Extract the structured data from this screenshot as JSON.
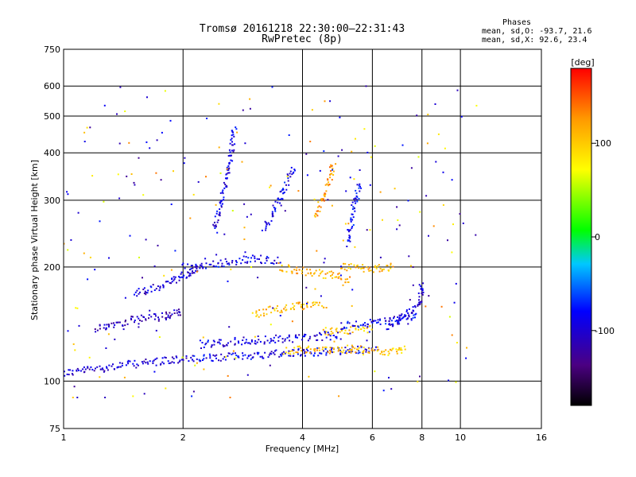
{
  "title_line1": "Tromsø 20161218 22:30:00–22:31:43",
  "title_line2": "RwPretec (8p)",
  "stats": {
    "heading": "Phases",
    "line_o": "mean, sd,O: -93.7, 21.6",
    "line_x": "mean, sd,X:  92.6, 23.4"
  },
  "colorbar": {
    "label": "[deg]",
    "ticks": [
      {
        "value": 100,
        "label": "100"
      },
      {
        "value": 0,
        "label": "0"
      },
      {
        "value": -100,
        "label": "-100"
      }
    ],
    "range": [
      -180,
      180
    ]
  },
  "chart_data": {
    "type": "scatter",
    "xlabel": "Frequency [MHz]",
    "ylabel": "Stationary phase Virtual Height [km]",
    "x_scale": "log",
    "y_scale": "log",
    "xlim": [
      1,
      16
    ],
    "ylim": [
      75,
      750
    ],
    "x_ticks": [
      {
        "value": 1,
        "label": "1"
      },
      {
        "value": 2,
        "label": "2"
      },
      {
        "value": 4,
        "label": "4"
      },
      {
        "value": 6,
        "label": "6"
      },
      {
        "value": 8,
        "label": "8"
      },
      {
        "value": 10,
        "label": "10"
      },
      {
        "value": 16,
        "label": "16"
      }
    ],
    "y_ticks": [
      {
        "value": 75,
        "label": "75"
      },
      {
        "value": 100,
        "label": "100"
      },
      {
        "value": 200,
        "label": "200"
      },
      {
        "value": 300,
        "label": "300"
      },
      {
        "value": 400,
        "label": "400"
      },
      {
        "value": 500,
        "label": "500"
      },
      {
        "value": 600,
        "label": "600"
      },
      {
        "value": 750,
        "label": "750"
      }
    ],
    "grid": true,
    "colormap": "rainbow",
    "traces": [
      {
        "f": [
          1.0,
          1.4,
          1.8,
          2.1
        ],
        "h": [
          105,
          110,
          113,
          115
        ],
        "phase": -100
      },
      {
        "f": [
          2.1,
          3.0,
          4.0,
          5.0,
          6.2
        ],
        "h": [
          114,
          117,
          119,
          120,
          121
        ],
        "phase": -90
      },
      {
        "f": [
          3.6,
          4.2,
          5.0,
          5.6
        ],
        "h": [
          120,
          121,
          121,
          122
        ],
        "phase": 110
      },
      {
        "f": [
          5.6,
          6.5,
          7.3
        ],
        "h": [
          120,
          120,
          121
        ],
        "phase": 105
      },
      {
        "f": [
          1.2,
          1.5,
          1.8,
          2.0
        ],
        "h": [
          138,
          145,
          148,
          152
        ],
        "phase": -110
      },
      {
        "f": [
          2.2,
          3.0,
          4.0,
          5.0
        ],
        "h": [
          125,
          128,
          130,
          132
        ],
        "phase": -95
      },
      {
        "f": [
          3.0,
          3.5,
          4.0,
          4.6
        ],
        "h": [
          150,
          155,
          158,
          160
        ],
        "phase": 110
      },
      {
        "f": [
          4.5,
          5.2,
          6.0
        ],
        "h": [
          135,
          136,
          138
        ],
        "phase": 100
      },
      {
        "f": [
          5.0,
          6.0,
          7.0,
          7.8
        ],
        "h": [
          140,
          142,
          145,
          150
        ],
        "phase": -85
      },
      {
        "f": [
          6.5,
          7.2,
          7.9,
          8.0
        ],
        "h": [
          140,
          148,
          160,
          180
        ],
        "phase": -100
      },
      {
        "f": [
          1.5,
          1.8,
          2.0,
          2.2
        ],
        "h": [
          170,
          180,
          190,
          200
        ],
        "phase": -100
      },
      {
        "f": [
          2.0,
          2.5,
          3.0,
          3.5
        ],
        "h": [
          200,
          205,
          210,
          208
        ],
        "phase": -90
      },
      {
        "f": [
          3.5,
          4.0,
          4.7,
          5.3
        ],
        "h": [
          200,
          195,
          190,
          185
        ],
        "phase": 115
      },
      {
        "f": [
          5.0,
          6.0,
          6.8
        ],
        "h": [
          200,
          198,
          200
        ],
        "phase": 110
      },
      {
        "f": [
          2.4,
          2.6,
          2.7
        ],
        "h": [
          250,
          350,
          470
        ],
        "phase": -95
      },
      {
        "f": [
          3.2,
          3.5,
          3.8
        ],
        "h": [
          250,
          300,
          370
        ],
        "phase": -90
      },
      {
        "f": [
          4.3,
          4.6,
          4.8
        ],
        "h": [
          270,
          320,
          380
        ],
        "phase": 125
      },
      {
        "f": [
          5.2,
          5.4,
          5.6
        ],
        "h": [
          230,
          290,
          330
        ],
        "phase": -85
      }
    ]
  }
}
